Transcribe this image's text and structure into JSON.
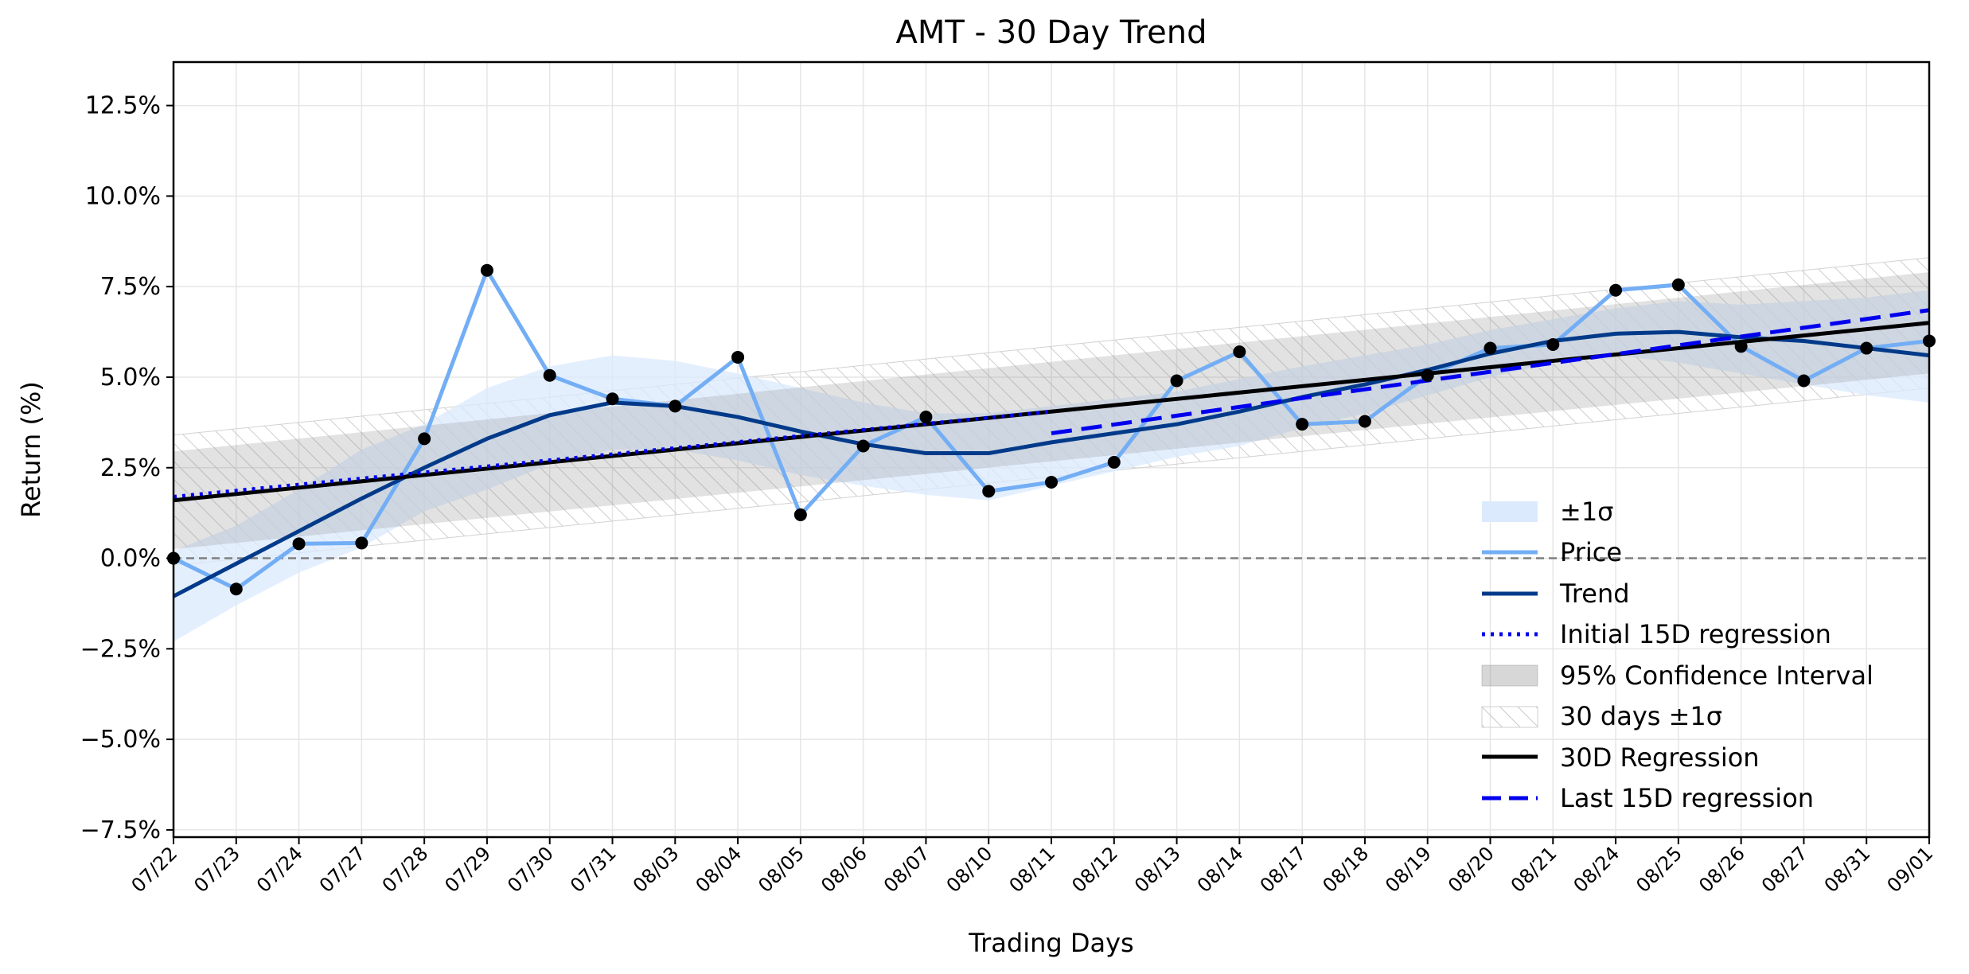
{
  "chart_data": {
    "type": "line",
    "title": "AMT - 30 Day Trend",
    "xlabel": "Trading Days",
    "ylabel": "Return (%)",
    "categories": [
      "07/22",
      "07/23",
      "07/24",
      "07/27",
      "07/28",
      "07/29",
      "07/30",
      "07/31",
      "08/03",
      "08/04",
      "08/05",
      "08/06",
      "08/07",
      "08/10",
      "08/11",
      "08/12",
      "08/13",
      "08/14",
      "08/17",
      "08/18",
      "08/19",
      "08/20",
      "08/21",
      "08/24",
      "08/25",
      "08/26",
      "08/27",
      "08/31",
      "09/01"
    ],
    "ylim": [
      -7.7,
      13.7
    ],
    "yticks": [
      -7.5,
      -5.0,
      -2.5,
      0.0,
      2.5,
      5.0,
      7.5,
      10.0,
      12.5
    ],
    "ytick_labels": [
      "−7.5%",
      "−5.0%",
      "−2.5%",
      "0.0%",
      "2.5%",
      "5.0%",
      "7.5%",
      "10.0%",
      "12.5%"
    ],
    "grid": true,
    "legend_position": "lower-right",
    "legend": [
      "±1σ",
      "Price",
      "Trend",
      "Initial 15D regression",
      "95% Confidence Interval",
      "30 days ±1σ",
      "30D Regression",
      "Last 15D regression"
    ],
    "series": [
      {
        "name": "Price",
        "values": [
          0.0,
          -0.85,
          0.4,
          0.42,
          3.3,
          7.95,
          5.05,
          4.4,
          4.2,
          5.55,
          1.2,
          3.1,
          3.9,
          1.85,
          2.1,
          2.65,
          4.9,
          5.7,
          3.7,
          3.78,
          5.05,
          5.8,
          5.9,
          7.4,
          7.55,
          5.85,
          4.9,
          5.8,
          6.0
        ]
      },
      {
        "name": "Trend",
        "values": [
          -1.05,
          -0.15,
          0.75,
          1.65,
          2.5,
          3.3,
          3.95,
          4.3,
          4.2,
          3.9,
          3.5,
          3.15,
          2.9,
          2.9,
          3.2,
          3.45,
          3.7,
          4.05,
          4.45,
          4.8,
          5.2,
          5.65,
          6.0,
          6.2,
          6.25,
          6.1,
          6.0,
          5.8,
          5.6
        ]
      },
      {
        "name": "±1σ",
        "upper": [
          0.2,
          0.9,
          1.9,
          3.0,
          3.7,
          4.7,
          5.3,
          5.6,
          5.45,
          5.1,
          4.7,
          4.3,
          4.0,
          4.0,
          4.2,
          4.4,
          4.6,
          4.95,
          5.3,
          5.6,
          5.9,
          6.3,
          6.6,
          6.9,
          7.1,
          7.0,
          7.1,
          7.2,
          7.4
        ],
        "lower": [
          -2.3,
          -1.3,
          -0.4,
          0.3,
          1.3,
          1.9,
          2.6,
          3.0,
          3.0,
          2.7,
          2.3,
          2.0,
          1.75,
          1.6,
          2.0,
          2.4,
          2.8,
          3.1,
          3.6,
          4.0,
          4.5,
          5.0,
          5.4,
          5.6,
          5.4,
          5.1,
          4.8,
          4.5,
          4.3
        ]
      },
      {
        "name": "Initial 15D regression",
        "x_range": [
          0,
          14
        ],
        "y_range": [
          1.7,
          4.05
        ]
      },
      {
        "name": "Last 15D regression",
        "x_range": [
          14,
          28
        ],
        "y_range": [
          3.45,
          6.85
        ]
      },
      {
        "name": "30D Regression",
        "x_range": [
          0,
          28
        ],
        "y_range": [
          1.6,
          6.5
        ]
      },
      {
        "name": "95% Confidence Interval",
        "upper": [
          2.95,
          7.9
        ],
        "lower": [
          0.25,
          5.1
        ]
      },
      {
        "name": "30 days ±1σ",
        "upper": [
          3.4,
          8.3
        ],
        "lower": [
          -0.2,
          4.7
        ]
      }
    ],
    "reference_line": 0.0
  },
  "colors": {
    "price": "#73aef5",
    "trend": "#023a8a",
    "sigma_fill": "#dbeafd",
    "regression_15d": "#0000ee",
    "regression_30d": "#000000",
    "ci_fill": "#8c8c8c",
    "hatch": "#c8c8c8",
    "points": "#000000",
    "zero_line": "#7f7f7f",
    "grid": "#e6e6e6"
  }
}
